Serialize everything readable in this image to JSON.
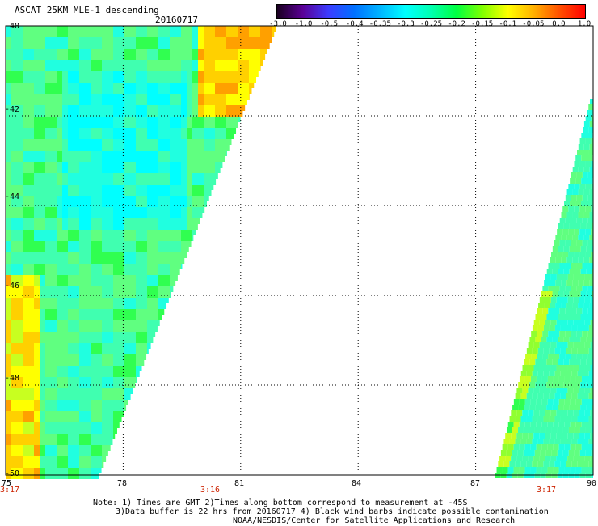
{
  "header": {
    "title": "ASCAT 25KM MLE-1 descending",
    "date": "20160717"
  },
  "colorbar": {
    "ticks": [
      "-3.0",
      "-1.0",
      "-0.5",
      "-0.4",
      "-0.35",
      "-0.3",
      "-0.25",
      "-0.2",
      "-0.15",
      "-0.1",
      "-0.05",
      "0.0",
      "1.0"
    ],
    "colors": [
      "#1a0020",
      "#5a0096",
      "#3c3cff",
      "#0070ff",
      "#00b4ff",
      "#00ffff",
      "#00ffb0",
      "#00ff40",
      "#80ff00",
      "#ffff00",
      "#ffb000",
      "#ff5000",
      "#ff0000"
    ]
  },
  "map": {
    "y_labels": [
      "-40",
      "-42",
      "-44",
      "-46",
      "-48",
      "-50"
    ],
    "x_labels": [
      "75",
      "78",
      "81",
      "84",
      "87",
      "90"
    ],
    "time_labels": [
      "3:17",
      "3:16",
      "3:17"
    ],
    "lon_range": [
      75,
      90
    ],
    "lat_range": [
      -50,
      -40
    ],
    "time_color": "#cc2200"
  },
  "notes": {
    "line1": "Note: 1) Times are GMT 2)Times along bottom correspond to measurement at -45S",
    "line2": "3)Data buffer is 22 hrs from 20160717 4) Black wind barbs indicate possible contamination",
    "line3": "NOAA/NESDIS/Center for Satellite Applications and Research"
  }
}
